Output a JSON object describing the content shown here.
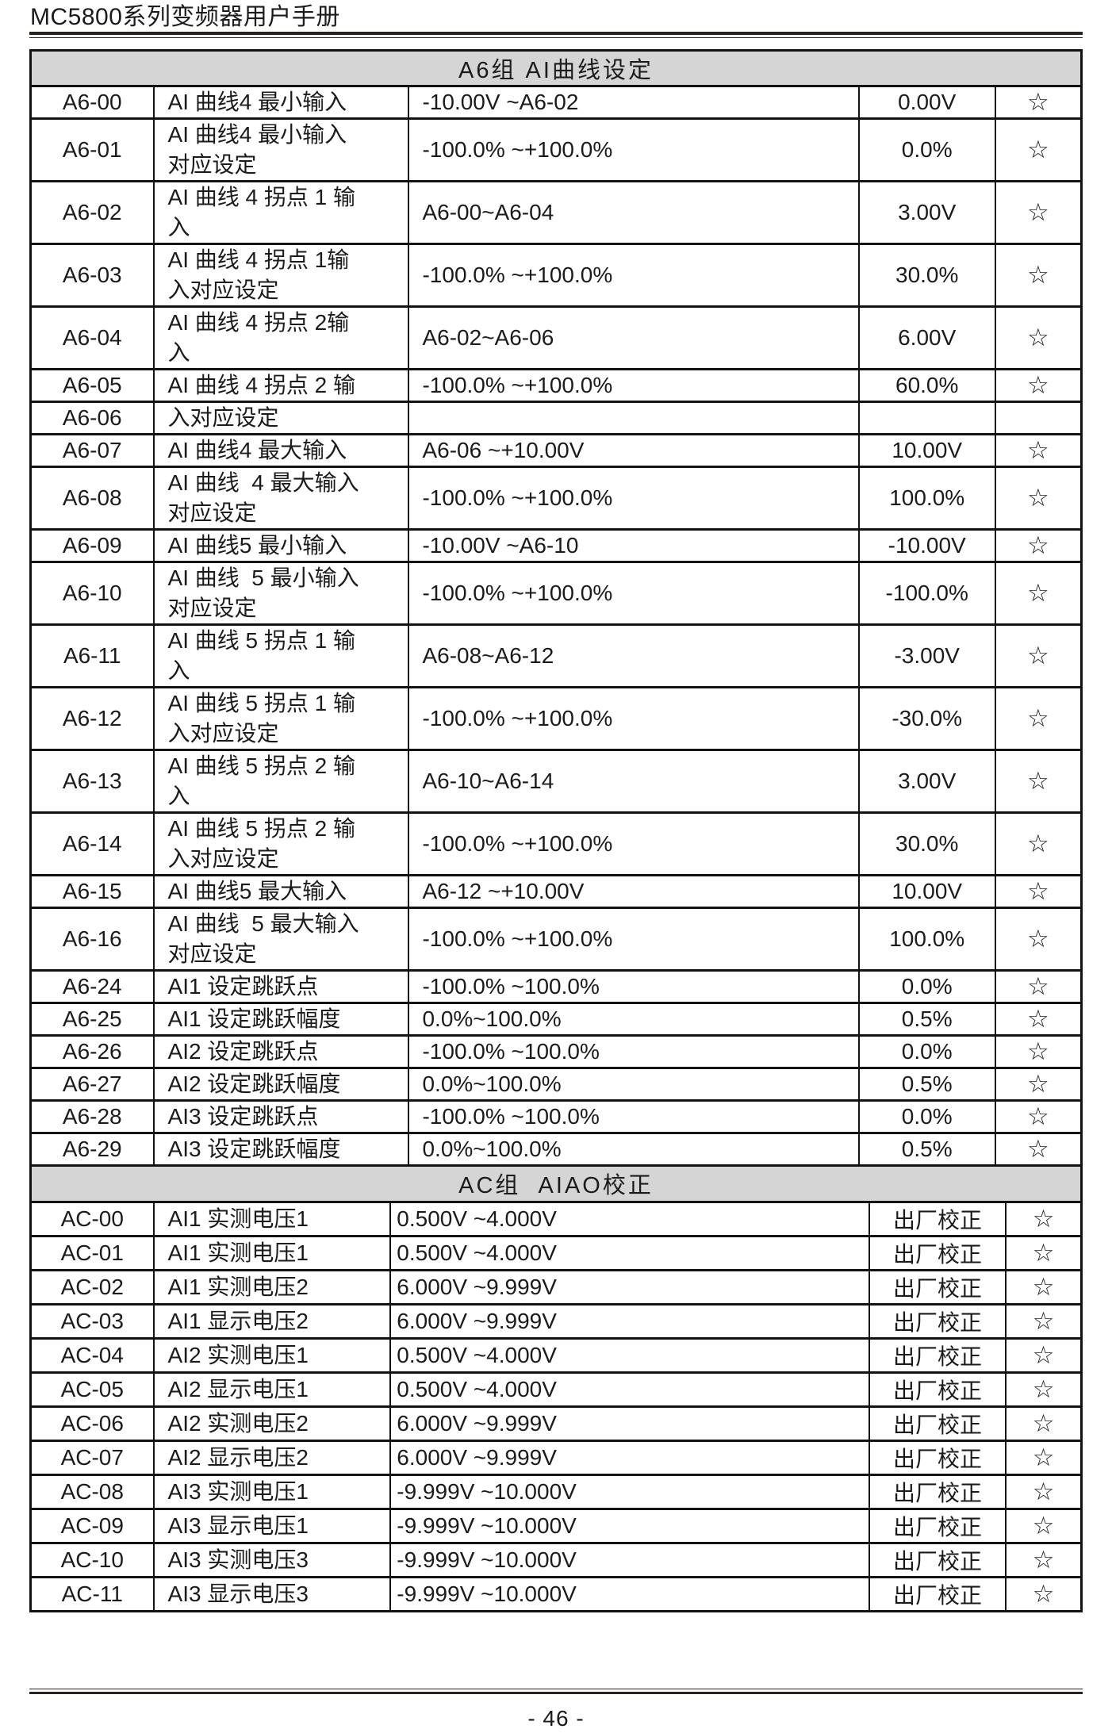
{
  "page": {
    "header_title": "MC5800系列变频器用户手册",
    "footer_page_number": "- 46 -"
  },
  "colors": {
    "rule_dark": "#2b2220",
    "table_border": "#131313",
    "section_header_bg": "#d5d5d5",
    "text": "#1b1b1b"
  },
  "icons": {
    "star": "☆"
  },
  "tables": [
    {
      "id": "a6",
      "title": "A6组 AI曲线设定",
      "rows": [
        {
          "code": "A6-00",
          "name": "AI 曲线4 最小输入",
          "range": "-10.00V ~A6-02",
          "value": "0.00V",
          "star": "☆"
        },
        {
          "code": "A6-01",
          "name": "AI 曲线4 最小输入\n对应设定",
          "range": "-100.0% ~+100.0%",
          "value": "0.0%",
          "star": "☆"
        },
        {
          "code": "A6-02",
          "name": "AI 曲线 4 拐点 1 输\n入",
          "range": "A6-00~A6-04",
          "value": "3.00V",
          "star": "☆"
        },
        {
          "code": "A6-03",
          "name": "AI 曲线 4 拐点 1输\n入对应设定",
          "range": "-100.0% ~+100.0%",
          "value": "30.0%",
          "star": "☆"
        },
        {
          "code": "A6-04",
          "name": "AI 曲线 4 拐点 2输\n入",
          "range": "A6-02~A6-06",
          "value": "6.00V",
          "star": "☆"
        },
        {
          "code": "A6-05",
          "name": "AI 曲线 4 拐点 2 输",
          "range": "-100.0% ~+100.0%",
          "value": "60.0%",
          "star": "☆"
        },
        {
          "code": "A6-06",
          "name": "入对应设定",
          "range": "",
          "value": "",
          "star": ""
        },
        {
          "code": "A6-07",
          "name": "AI 曲线4 最大输入",
          "range": "A6-06 ~+10.00V",
          "value": "10.00V",
          "star": "☆"
        },
        {
          "code": "A6-08",
          "name": "AI 曲线  4 最大输入\n对应设定",
          "range": "-100.0% ~+100.0%",
          "value": "100.0%",
          "star": "☆"
        },
        {
          "code": "A6-09",
          "name": "AI 曲线5 最小输入",
          "range": "-10.00V ~A6-10",
          "value": "-10.00V",
          "star": "☆"
        },
        {
          "code": "A6-10",
          "name": "AI 曲线  5 最小输入\n对应设定",
          "range": "-100.0% ~+100.0%",
          "value": "-100.0%",
          "star": "☆"
        },
        {
          "code": "A6-11",
          "name": "AI 曲线 5 拐点 1 输\n入",
          "range": "A6-08~A6-12",
          "value": "-3.00V",
          "star": "☆"
        },
        {
          "code": "A6-12",
          "name": "AI 曲线 5 拐点 1 输\n入对应设定",
          "range": "-100.0% ~+100.0%",
          "value": "-30.0%",
          "star": "☆"
        },
        {
          "code": "A6-13",
          "name": "AI 曲线 5 拐点 2 输\n入",
          "range": "A6-10~A6-14",
          "value": "3.00V",
          "star": "☆"
        },
        {
          "code": "A6-14",
          "name": "AI 曲线 5 拐点 2 输\n入对应设定",
          "range": "-100.0% ~+100.0%",
          "value": "30.0%",
          "star": "☆"
        },
        {
          "code": "A6-15",
          "name": "AI 曲线5 最大输入",
          "range": "A6-12 ~+10.00V",
          "value": "10.00V",
          "star": "☆"
        },
        {
          "code": "A6-16",
          "name": "AI 曲线  5 最大输入\n对应设定",
          "range": "-100.0% ~+100.0%",
          "value": "100.0%",
          "star": "☆"
        },
        {
          "code": "A6-24",
          "name": "AI1 设定跳跃点",
          "range": "-100.0% ~100.0%",
          "value": "0.0%",
          "star": "☆"
        },
        {
          "code": "A6-25",
          "name": "AI1 设定跳跃幅度",
          "range": "0.0%~100.0%",
          "value": "0.5%",
          "star": "☆"
        },
        {
          "code": "A6-26",
          "name": "AI2 设定跳跃点",
          "range": "-100.0% ~100.0%",
          "value": "0.0%",
          "star": "☆"
        },
        {
          "code": "A6-27",
          "name": "AI2 设定跳跃幅度",
          "range": "0.0%~100.0%",
          "value": "0.5%",
          "star": "☆"
        },
        {
          "code": "A6-28",
          "name": "AI3 设定跳跃点",
          "range": "-100.0% ~100.0%",
          "value": "0.0%",
          "star": "☆"
        },
        {
          "code": "A6-29",
          "name": "AI3 设定跳跃幅度",
          "range": "0.0%~100.0%",
          "value": "0.5%",
          "star": "☆"
        }
      ]
    },
    {
      "id": "ac",
      "title": "AC组  AIAO校正",
      "rows": [
        {
          "code": "AC-00",
          "name": "AI1 实测电压1",
          "range": "0.500V ~4.000V",
          "value": "出厂校正",
          "star": "☆"
        },
        {
          "code": "AC-01",
          "name": "AI1 实测电压1",
          "range": "0.500V ~4.000V",
          "value": "出厂校正",
          "star": "☆"
        },
        {
          "code": "AC-02",
          "name": "AI1 实测电压2",
          "range": "6.000V ~9.999V",
          "value": "出厂校正",
          "star": "☆"
        },
        {
          "code": "AC-03",
          "name": "AI1 显示电压2",
          "range": "6.000V ~9.999V",
          "value": "出厂校正",
          "star": "☆"
        },
        {
          "code": "AC-04",
          "name": "AI2 实测电压1",
          "range": "0.500V ~4.000V",
          "value": "出厂校正",
          "star": "☆"
        },
        {
          "code": "AC-05",
          "name": "AI2 显示电压1",
          "range": "0.500V ~4.000V",
          "value": "出厂校正",
          "star": "☆"
        },
        {
          "code": "AC-06",
          "name": "AI2 实测电压2",
          "range": "6.000V ~9.999V",
          "value": "出厂校正",
          "star": "☆"
        },
        {
          "code": "AC-07",
          "name": "AI2 显示电压2",
          "range": "6.000V ~9.999V",
          "value": "出厂校正",
          "star": "☆"
        },
        {
          "code": "AC-08",
          "name": "AI3 实测电压1",
          "range": "-9.999V ~10.000V",
          "value": "出厂校正",
          "star": "☆"
        },
        {
          "code": "AC-09",
          "name": "AI3 显示电压1",
          "range": "-9.999V ~10.000V",
          "value": "出厂校正",
          "star": "☆"
        },
        {
          "code": "AC-10",
          "name": "AI3 实测电压3",
          "range": "-9.999V ~10.000V",
          "value": "出厂校正",
          "star": "☆"
        },
        {
          "code": "AC-11",
          "name": "AI3 显示电压3",
          "range": "-9.999V ~10.000V",
          "value": "出厂校正",
          "star": "☆"
        }
      ]
    }
  ]
}
